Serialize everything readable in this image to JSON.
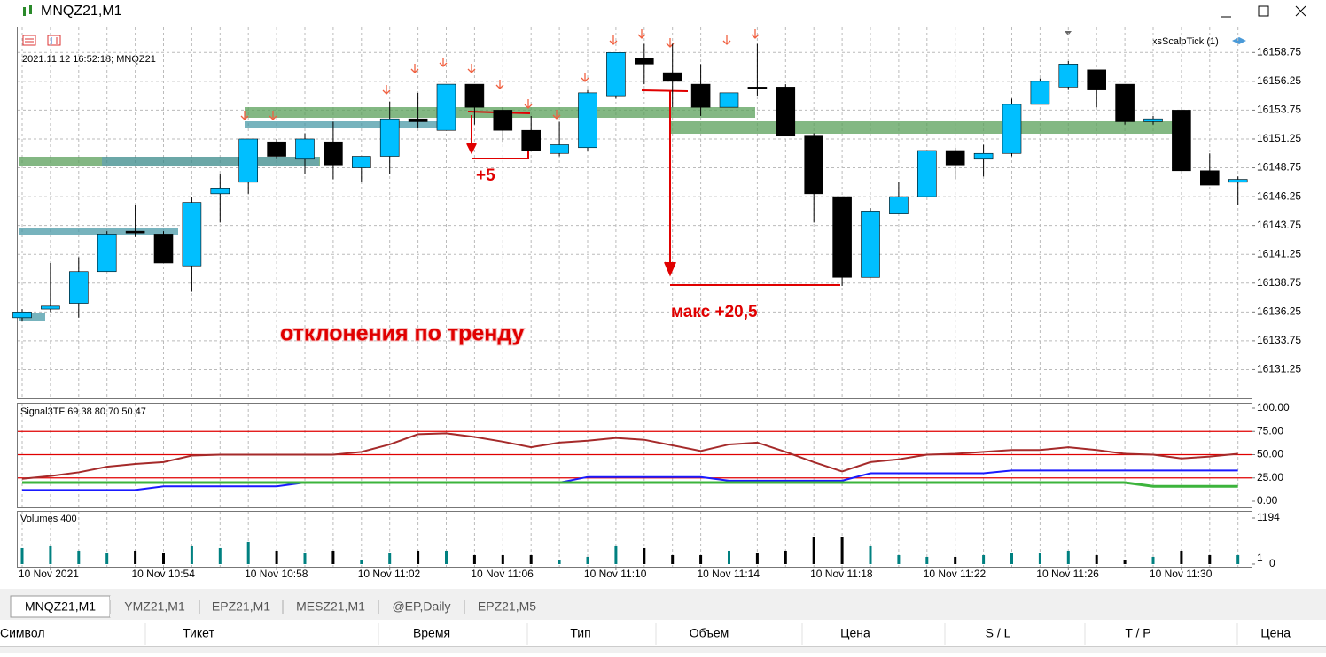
{
  "window": {
    "title": "MNQZ21,M1"
  },
  "chart": {
    "type": "candlestick",
    "info": "2021.11.12 16:52:18; MNQZ21",
    "indicator_name": "xsScalpTick (1)",
    "categories": [
      null,
      "10 Nov 2021",
      null,
      null,
      null,
      "10 Nov 10:54",
      null,
      null,
      null,
      "10 Nov 10:58",
      null,
      null,
      null,
      "10 Nov 11:02",
      null,
      null,
      null,
      "10 Nov 11:06",
      null,
      null,
      null,
      "10 Nov 11:10",
      null,
      null,
      null,
      "10 Nov 11:14",
      null,
      null,
      null,
      "10 Nov 11:18",
      null,
      null,
      null,
      "10 Nov 11:22",
      null,
      null,
      null,
      "10 Nov 11:26",
      null,
      null,
      null,
      "10 Nov 11:30",
      null,
      null
    ],
    "open": [
      16135.75,
      16136.5,
      16137,
      16139.75,
      16143.25,
      16143,
      16140.25,
      16146.5,
      16147.5,
      16151,
      16149.5,
      16151,
      16148.75,
      16149.75,
      16153,
      16152,
      16156,
      16153.75,
      16152,
      16150,
      16150.5,
      16155,
      16158.25,
      16157,
      16156,
      16154,
      16155.75,
      16155.75,
      16151.5,
      16146.25,
      16139.25,
      16144.75,
      16146.25,
      16150.25,
      16149.5,
      16150,
      16154.25,
      16155.75,
      16157.25,
      16156,
      16152.75,
      16153.75,
      16148.5,
      16147.5
    ],
    "high": [
      16136.5,
      16140.5,
      16141,
      16143.25,
      16145.5,
      16143.25,
      16146.25,
      16148.25,
      16151.25,
      16151.25,
      16151.75,
      16152.75,
      16149.75,
      16154.5,
      16155.25,
      16156,
      16156,
      16154,
      16153.25,
      16152.75,
      16155.5,
      16158.75,
      16159.5,
      16159.5,
      16157.75,
      16159,
      16159.5,
      16156,
      16151.75,
      16146.25,
      16145.25,
      16147.5,
      16150.25,
      16150.5,
      16150.75,
      16154.75,
      16156.5,
      16158,
      16157.25,
      16156,
      16153.25,
      16153.75,
      16150,
      16148
    ],
    "low": [
      16135.5,
      16136.25,
      16135.75,
      16139.75,
      16142.75,
      16140.5,
      16138,
      16144,
      16146.5,
      16149.5,
      16148.25,
      16147.75,
      16147.5,
      16148.25,
      16152.25,
      16152,
      16152.5,
      16151,
      16150.25,
      16149.75,
      16150.25,
      16154.75,
      16156,
      16154,
      16153.25,
      16153.75,
      16155,
      16151.5,
      16144,
      16138.5,
      16139.25,
      16144.75,
      16146.25,
      16147.75,
      16148,
      16149.75,
      16154.25,
      16155.5,
      16154,
      16152.5,
      16152.5,
      16148.5,
      16147.25,
      16145.5
    ],
    "close": [
      16136.25,
      16136.75,
      16139.75,
      16143,
      16143.25,
      16140.5,
      16145.75,
      16147,
      16151.25,
      16149.75,
      16151.25,
      16149,
      16149.75,
      16153,
      16152.75,
      16156,
      16154,
      16152,
      16150.25,
      16150.75,
      16155.25,
      16158.75,
      16157.75,
      16156.25,
      16154,
      16155.25,
      16155.75,
      16151.5,
      16146.5,
      16139.25,
      16145,
      16146.25,
      16150.25,
      16149,
      16150,
      16154.25,
      16156.25,
      16157.75,
      16155.5,
      16152.75,
      16153,
      16148.5,
      16147.25,
      16147.75
    ],
    "colors": {
      "up": "#00bfff",
      "down": "#000000"
    },
    "ylim": [
      16128.75,
      16161
    ],
    "yticks": [
      16131.25,
      16133.75,
      16136.25,
      16138.75,
      16141.25,
      16143.75,
      16146.25,
      16148.75,
      16151.25,
      16153.75,
      16156.25,
      16158.75
    ],
    "grid": true,
    "annotations": [
      "+5",
      "макс +20,5",
      "отклонения по тренду"
    ]
  },
  "oscillator": {
    "title": "Signal3TF 69.38 80.70 50.47",
    "series": [
      {
        "color": "#a52a2a",
        "values": [
          24,
          27,
          31,
          37,
          40,
          42,
          49,
          50,
          50,
          50,
          50,
          50,
          53,
          61,
          72,
          73,
          69,
          64,
          58,
          63,
          65,
          68,
          66,
          60,
          54,
          61,
          63,
          53,
          42,
          32,
          42,
          45,
          50,
          51,
          53,
          55,
          55,
          58,
          55,
          51,
          50,
          46,
          48,
          51
        ]
      },
      {
        "color": "#1a1aff",
        "values": [
          12,
          12,
          12,
          12,
          12,
          16,
          16,
          16,
          16,
          16,
          20,
          20,
          20,
          20,
          20,
          20,
          20,
          20,
          20,
          20,
          26,
          26,
          26,
          26,
          26,
          22,
          22,
          22,
          22,
          22,
          30,
          30,
          30,
          30,
          30,
          33,
          33,
          33,
          33,
          33,
          33,
          33,
          33,
          33
        ]
      },
      {
        "color": "#3cb43c",
        "values": [
          20,
          20,
          20,
          20,
          20,
          20,
          20,
          20,
          20,
          20,
          20,
          20,
          20,
          20,
          20,
          20,
          20,
          20,
          20,
          20,
          20,
          20,
          20,
          20,
          20,
          20,
          20,
          20,
          20,
          20,
          20,
          20,
          20,
          20,
          20,
          20,
          20,
          20,
          20,
          20,
          16,
          16,
          16,
          16
        ]
      }
    ],
    "levels": [
      75,
      50,
      25
    ],
    "level_color": "#e00000",
    "ylim": [
      0,
      100
    ],
    "yticks": [
      {
        "value": 100,
        "label": "100.00"
      },
      {
        "value": 75,
        "label": "75.00"
      },
      {
        "value": 50,
        "label": "50.00"
      },
      {
        "value": 25,
        "label": "25.00"
      },
      {
        "value": 0,
        "label": "0.00"
      }
    ]
  },
  "volumes": {
    "title": "Volumes 400",
    "values": [
      414,
      460,
      345,
      276,
      345,
      276,
      460,
      414,
      575,
      345,
      276,
      345,
      115,
      276,
      345,
      345,
      230,
      230,
      230,
      115,
      184,
      460,
      414,
      230,
      230,
      345,
      276,
      345,
      690,
      690,
      460,
      230,
      184,
      184,
      230,
      276,
      276,
      345,
      230,
      115,
      184,
      345,
      230,
      230
    ],
    "colors": {
      "up": "#008080",
      "down": "#000000"
    },
    "ylim": [
      0,
      1194
    ],
    "yticks": [
      0,
      1,
      1194
    ]
  },
  "tabs": [
    "MNQZ21,M1",
    "YMZ21,M1",
    "EPZ21,M1",
    "MESZ21,M1",
    "@EP,Daily",
    "EPZ21,M5"
  ],
  "columns": [
    "Символ",
    "Тикет",
    "Время",
    "Тип",
    "Объем",
    "Цена",
    "S / L",
    "T / P",
    "Цена"
  ]
}
